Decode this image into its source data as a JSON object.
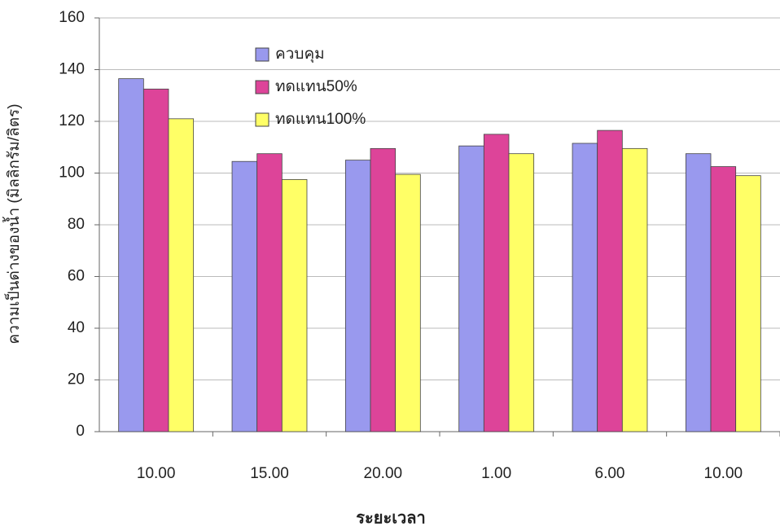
{
  "chart_data": {
    "type": "bar",
    "categories": [
      "10.00",
      "15.00",
      "20.00",
      "1.00",
      "6.00",
      "10.00"
    ],
    "x_label": "ระยะเวลา",
    "y_label": "ความเป็นด่างของน้ำ (มิลลิกรัม/ลิตร)",
    "series": [
      {
        "name": "ควบคุม",
        "color": "#9999ee",
        "values": [
          136.5,
          104.5,
          105,
          110.5,
          111.5,
          107.5
        ]
      },
      {
        "name": "ทดแทน50%",
        "color": "#dd4499",
        "values": [
          132.5,
          107.5,
          109.5,
          115,
          116.5,
          102.5
        ]
      },
      {
        "name": "ทดแทน100%",
        "color": "#ffff66",
        "values": [
          121,
          97.5,
          99.5,
          107.5,
          109.5,
          99
        ]
      }
    ],
    "ylim": [
      0,
      160
    ],
    "yticks": [
      0,
      20,
      40,
      60,
      80,
      100,
      120,
      140,
      160
    ],
    "grid": true,
    "legend": "top-left"
  }
}
